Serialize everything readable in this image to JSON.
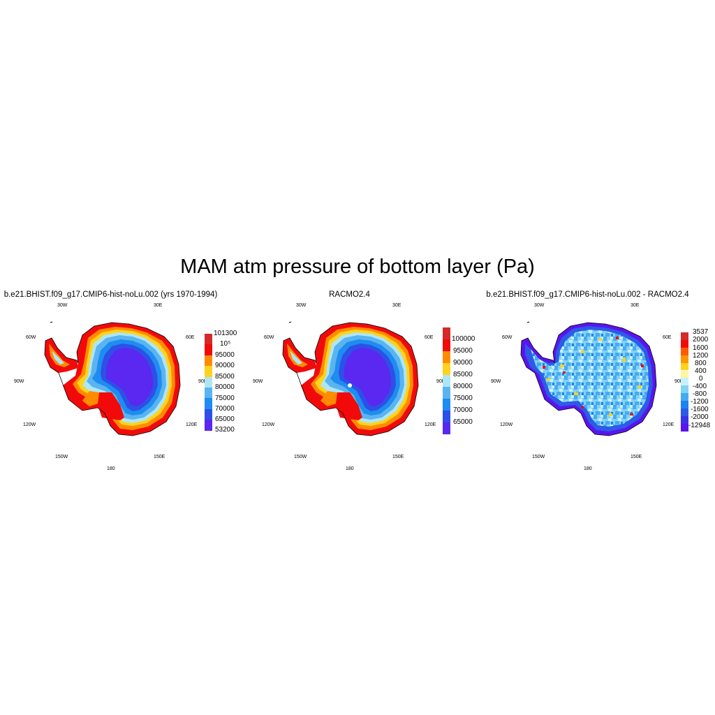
{
  "title": "MAM atm pressure of bottom layer (Pa)",
  "panels": [
    {
      "title": "b.e21.BHIST.f09_g17.CMIP6-hist-noLu.002 (yrs 1970-1994)",
      "lon_labels": [
        "30W",
        "30E",
        "60W",
        "60E",
        "90W",
        "90E",
        "120W",
        "120E",
        "150W",
        "150E",
        "180"
      ],
      "colorbar": {
        "labels": [
          "101300",
          "10⁵",
          "95000",
          "90000",
          "85000",
          "80000",
          "75000",
          "70000",
          "65000",
          "53200"
        ],
        "colors": [
          "#d42a2a",
          "#f20a0a",
          "#ff8c00",
          "#ffd21e",
          "#aee6f5",
          "#5ab4f0",
          "#1e8cf0",
          "#2d50e6",
          "#5a28f0"
        ]
      }
    },
    {
      "title": "RACMO2.4",
      "lon_labels": [
        "30W",
        "30E",
        "60W",
        "60E",
        "90W",
        "90E",
        "120W",
        "120E",
        "150W",
        "150E",
        "180"
      ],
      "colorbar": {
        "labels": [
          "100000",
          "95000",
          "90000",
          "85000",
          "80000",
          "75000",
          "70000",
          "65000"
        ],
        "colors": [
          "#d42a2a",
          "#f20a0a",
          "#ff8c00",
          "#ffd21e",
          "#aee6f5",
          "#5ab4f0",
          "#1e8cf0",
          "#2d50e6",
          "#5a28f0"
        ]
      }
    },
    {
      "title": "b.e21.BHIST.f09_g17.CMIP6-hist-noLu.002 - RACMO2.4",
      "lon_labels": [
        "30W",
        "30E",
        "60W",
        "60E",
        "90W",
        "90E",
        "120W",
        "120E",
        "150W",
        "150E",
        "180"
      ],
      "colorbar": {
        "labels": [
          "3537",
          "2000",
          "1600",
          "1200",
          "800",
          "400",
          "0",
          "-400",
          "-800",
          "-1200",
          "-1600",
          "-2000",
          "-12948"
        ],
        "colors": [
          "#d42a2a",
          "#f20a0a",
          "#ff5a00",
          "#ff9600",
          "#ffd21e",
          "#fff5a0",
          "#c8f0fa",
          "#82d2f5",
          "#46aaf0",
          "#1e82f0",
          "#2d5ae6",
          "#3c32e6",
          "#5a14f0"
        ]
      }
    }
  ]
}
